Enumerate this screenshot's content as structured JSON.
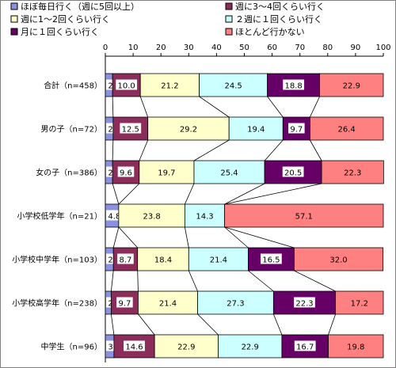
{
  "chart_data": {
    "type": "bar",
    "orientation": "horizontal",
    "stacked": true,
    "percent": true,
    "xlim": [
      0,
      100
    ],
    "xticks": [
      0,
      10,
      20,
      30,
      40,
      50,
      60,
      70,
      80,
      90,
      100
    ],
    "x_axis_position": "top",
    "grid": false,
    "connector_lines": true,
    "legend_position": "top",
    "categories": [
      "合計（n=458）",
      "男の子（n=72）",
      "女の子（n=386）",
      "小学校低学年（n=21）",
      "小学校中学年（n=103）",
      "小学校高学年（n=238）",
      "中学生（n=96）"
    ],
    "series": [
      {
        "name": "ほぼ毎日行く（週に5回以上）",
        "color": "#8a92e0",
        "values": [
          2.6,
          2.8,
          2.6,
          4.8,
          2.9,
          2.1,
          3.1
        ]
      },
      {
        "name": "週に3～4回くらい行く",
        "color": "#8b2c5a",
        "values": [
          10.0,
          12.5,
          9.6,
          0,
          8.7,
          9.7,
          14.6
        ]
      },
      {
        "name": "週に1～2回くらい行く",
        "color": "#ffffcc",
        "values": [
          21.2,
          29.2,
          19.7,
          23.8,
          18.4,
          21.4,
          22.9
        ]
      },
      {
        "name": "２週に１回くらい行く",
        "color": "#ccffff",
        "values": [
          24.5,
          19.4,
          25.4,
          14.3,
          21.4,
          27.3,
          22.9
        ]
      },
      {
        "name": "月に１回くらい行く",
        "color": "#660066",
        "values": [
          18.8,
          9.7,
          20.5,
          0,
          16.5,
          22.3,
          16.7
        ]
      },
      {
        "name": "ほとんど行かない",
        "color": "#ff8080",
        "values": [
          22.9,
          26.4,
          22.3,
          57.1,
          32.0,
          17.2,
          19.8
        ]
      }
    ]
  }
}
